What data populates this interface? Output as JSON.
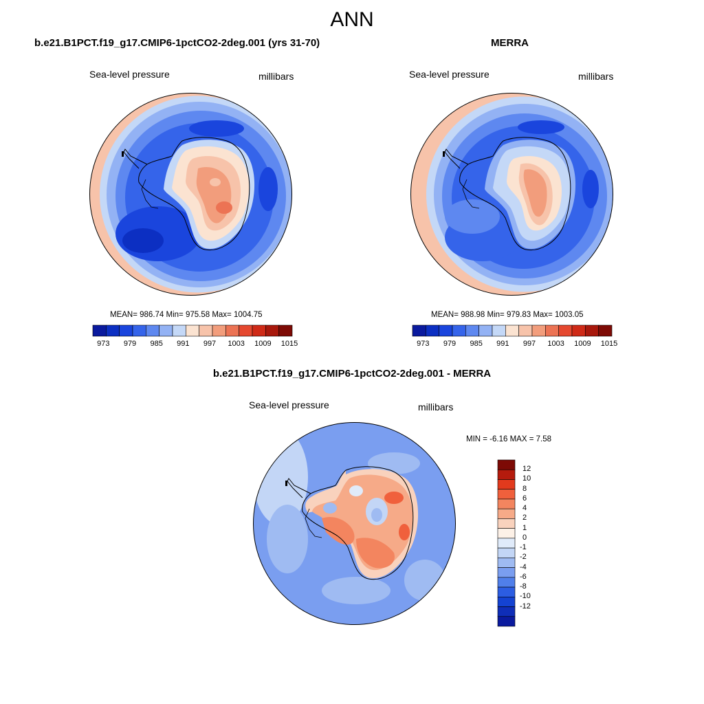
{
  "figure": {
    "title": "ANN",
    "colors": {
      "ocean_low": "#2f62e6",
      "ocean_mid": "#5b86ef",
      "ocean_light": "#a9c5f5",
      "land_high": "#ef7b5a",
      "pink": "#f7c3aa",
      "coast": "#000000"
    }
  },
  "panels": {
    "model": {
      "title": "b.e21.B1PCT.f19_g17.CMIP6-1pctCO2-2deg.001 (yrs 31-70)",
      "variable": "Sea-level pressure",
      "units": "millibars",
      "stats": "MEAN= 986.74  Min= 975.58  Max= 1004.75"
    },
    "obs": {
      "title": "MERRA",
      "variable": "Sea-level pressure",
      "units": "millibars",
      "stats": "MEAN= 988.98  Min= 979.83  Max= 1003.05"
    },
    "diff": {
      "title": "b.e21.B1PCT.f19_g17.CMIP6-1pctCO2-2deg.001 - MERRA",
      "variable": "Sea-level pressure",
      "units": "millibars",
      "stats": "MIN =  -6.16 MAX =   7.58"
    }
  },
  "colorbar_main": {
    "colors": [
      "#0a1a9e",
      "#0c2fc2",
      "#1a45dd",
      "#3564ea",
      "#5e88f0",
      "#93b2f4",
      "#c4d8f7",
      "#fbe3d1",
      "#f7c3aa",
      "#f29d7c",
      "#ec7354",
      "#e5482f",
      "#cf2a17",
      "#a8180c",
      "#7d0a05"
    ],
    "tick_labels": [
      "973",
      "979",
      "985",
      "991",
      "997",
      "1003",
      "1009",
      "1015"
    ]
  },
  "colorbar_diff": {
    "colors": [
      "#7d0a05",
      "#b51b0d",
      "#e23a1d",
      "#f0603c",
      "#f3855f",
      "#f6aa88",
      "#f9d2bd",
      "#fdf1e7",
      "#e0ebfa",
      "#c3d6f6",
      "#9fbbf2",
      "#7a9ef0",
      "#507fea",
      "#2c5de2",
      "#1443d2",
      "#0f2eb8",
      "#0a1a9e"
    ],
    "tick_labels": [
      "12",
      "10",
      "8",
      "6",
      "4",
      "2",
      "1",
      "0",
      "-1",
      "-2",
      "-4",
      "-6",
      "-8",
      "-10",
      "-12"
    ]
  }
}
